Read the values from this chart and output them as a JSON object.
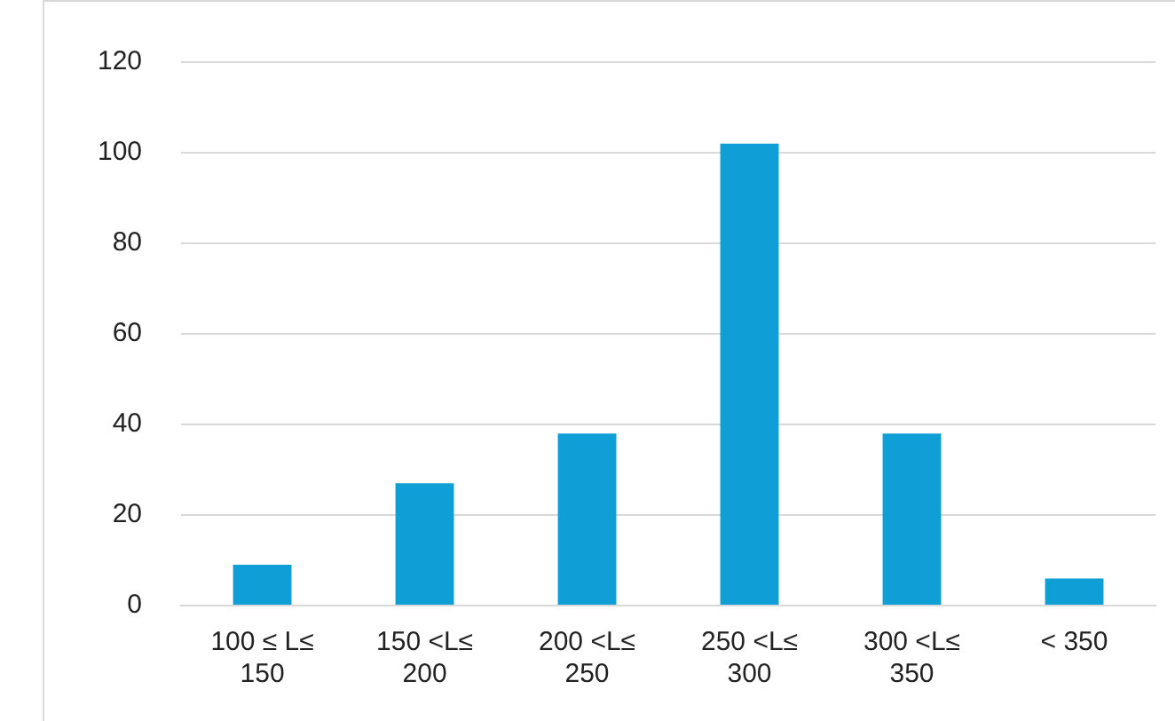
{
  "chart_data": {
    "type": "bar",
    "categories": [
      "100 ≤ L≤ 150",
      "150 <L≤ 200",
      "200 <L≤ 250",
      "250 <L≤ 300",
      "300 <L≤ 350",
      "< 350"
    ],
    "values": [
      9,
      27,
      38,
      102,
      38,
      6
    ],
    "color": "#109ed6",
    "ylim": [
      0,
      120
    ],
    "yticks": [
      0,
      20,
      40,
      60,
      80,
      100,
      120
    ],
    "grid": "y"
  }
}
